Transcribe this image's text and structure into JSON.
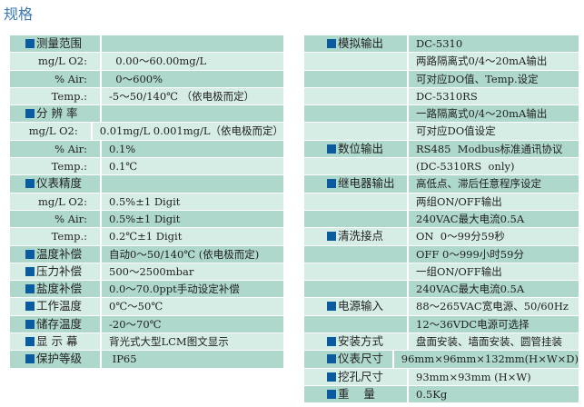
{
  "title": "规格",
  "colors": {
    "row_dark": "#afd8cc",
    "row_light": "#d6ede6",
    "bullet": "#0b5c9e",
    "title": "#3a78b4"
  },
  "left": [
    {
      "label": "测量范围",
      "value": "",
      "head": true
    },
    {
      "label": "mg/L O2:",
      "value": "  0.00～60.00mg/L",
      "head": false
    },
    {
      "label": "% Air:",
      "value": "  0～600%",
      "head": false
    },
    {
      "label": "Temp.:",
      "value": "-5～50/140℃ （依电极而定）",
      "head": false
    },
    {
      "label": "分 辨 率",
      "value": "",
      "head": true
    },
    {
      "label": "mg/L O2:",
      "value": "0.01mg/L 0.001mg/L（依电极而定）",
      "head": false
    },
    {
      "label": "% Air:",
      "value": "0.1%",
      "head": false
    },
    {
      "label": "Temp.:",
      "value": "0.1℃",
      "head": false
    },
    {
      "label": "仪表精度",
      "value": "",
      "head": true
    },
    {
      "label": "mg/L O2:",
      "value": "0.5%±1 Digit",
      "head": false
    },
    {
      "label": "% Air:",
      "value": "0.5%±1 Digit",
      "head": false
    },
    {
      "label": "Temp.:",
      "value": "0.2℃±1 Digit",
      "head": false
    },
    {
      "label": "温度补偿",
      "value": "自动0～50/140℃ (依电极而定)",
      "head": true
    },
    {
      "label": "压力补偿",
      "value": "500～2500mbar",
      "head": true
    },
    {
      "label": "盐度补偿",
      "value": "0.0～70.0ppt手动设定补偿",
      "head": true
    },
    {
      "label": "工作温度",
      "value": "0℃～50℃",
      "head": true
    },
    {
      "label": "储存温度",
      "value": "-20～70℃",
      "head": true
    },
    {
      "label": "显 示 幕",
      "value": "背光式大型LCM图文显示",
      "head": true
    },
    {
      "label": "保护等级",
      "value": " IP65",
      "head": true
    }
  ],
  "right": [
    {
      "label": "模拟输出",
      "value": "DC-5310",
      "head": true
    },
    {
      "label": "",
      "value": "两路隔离式0/4～20mA输出",
      "head": false
    },
    {
      "label": "",
      "value": "可对应DO值、Temp.设定",
      "head": false
    },
    {
      "label": "",
      "value": "DC-5310RS",
      "head": false
    },
    {
      "label": "",
      "value": "一路隔离式0/4～20mA输出",
      "head": false
    },
    {
      "label": "",
      "value": "可对应DO值设定",
      "head": false
    },
    {
      "label": "数位输出",
      "value": "RS485  Modbus标准通讯协议",
      "head": true
    },
    {
      "label": "",
      "value": "(DC-5310RS  only)",
      "head": false
    },
    {
      "label": "继电器输出",
      "value": "高低点、滞后任意程序设定",
      "head": true
    },
    {
      "label": "",
      "value": "两组ON/OFF输出",
      "head": false
    },
    {
      "label": "",
      "value": "240VAC最大电流0.5A",
      "head": false
    },
    {
      "label": "清洗接点",
      "value": "ON  0～99分59秒",
      "head": true
    },
    {
      "label": "",
      "value": "OFF 0～999小时59分",
      "head": false
    },
    {
      "label": "",
      "value": "一组ON/OFF输出",
      "head": false
    },
    {
      "label": "",
      "value": "240VAC最大电流0.5A",
      "head": false
    },
    {
      "label": "电源输入",
      "value": "88～265VAC宽电源、50/60Hz",
      "head": true
    },
    {
      "label": "",
      "value": "12～36VDC电源可选择",
      "head": false
    },
    {
      "label": "安装方式",
      "value": "盘面安装、墙面安装、圆管挂装",
      "head": true
    },
    {
      "label": "仪表尺寸",
      "value": "96mm×96mm×132mm(H×W×D)",
      "head": true
    },
    {
      "label": "挖孔尺寸",
      "value": "93mm×93mm (H×W)",
      "head": true
    },
    {
      "label": "重    量",
      "value": "0.5Kg",
      "head": true
    }
  ]
}
